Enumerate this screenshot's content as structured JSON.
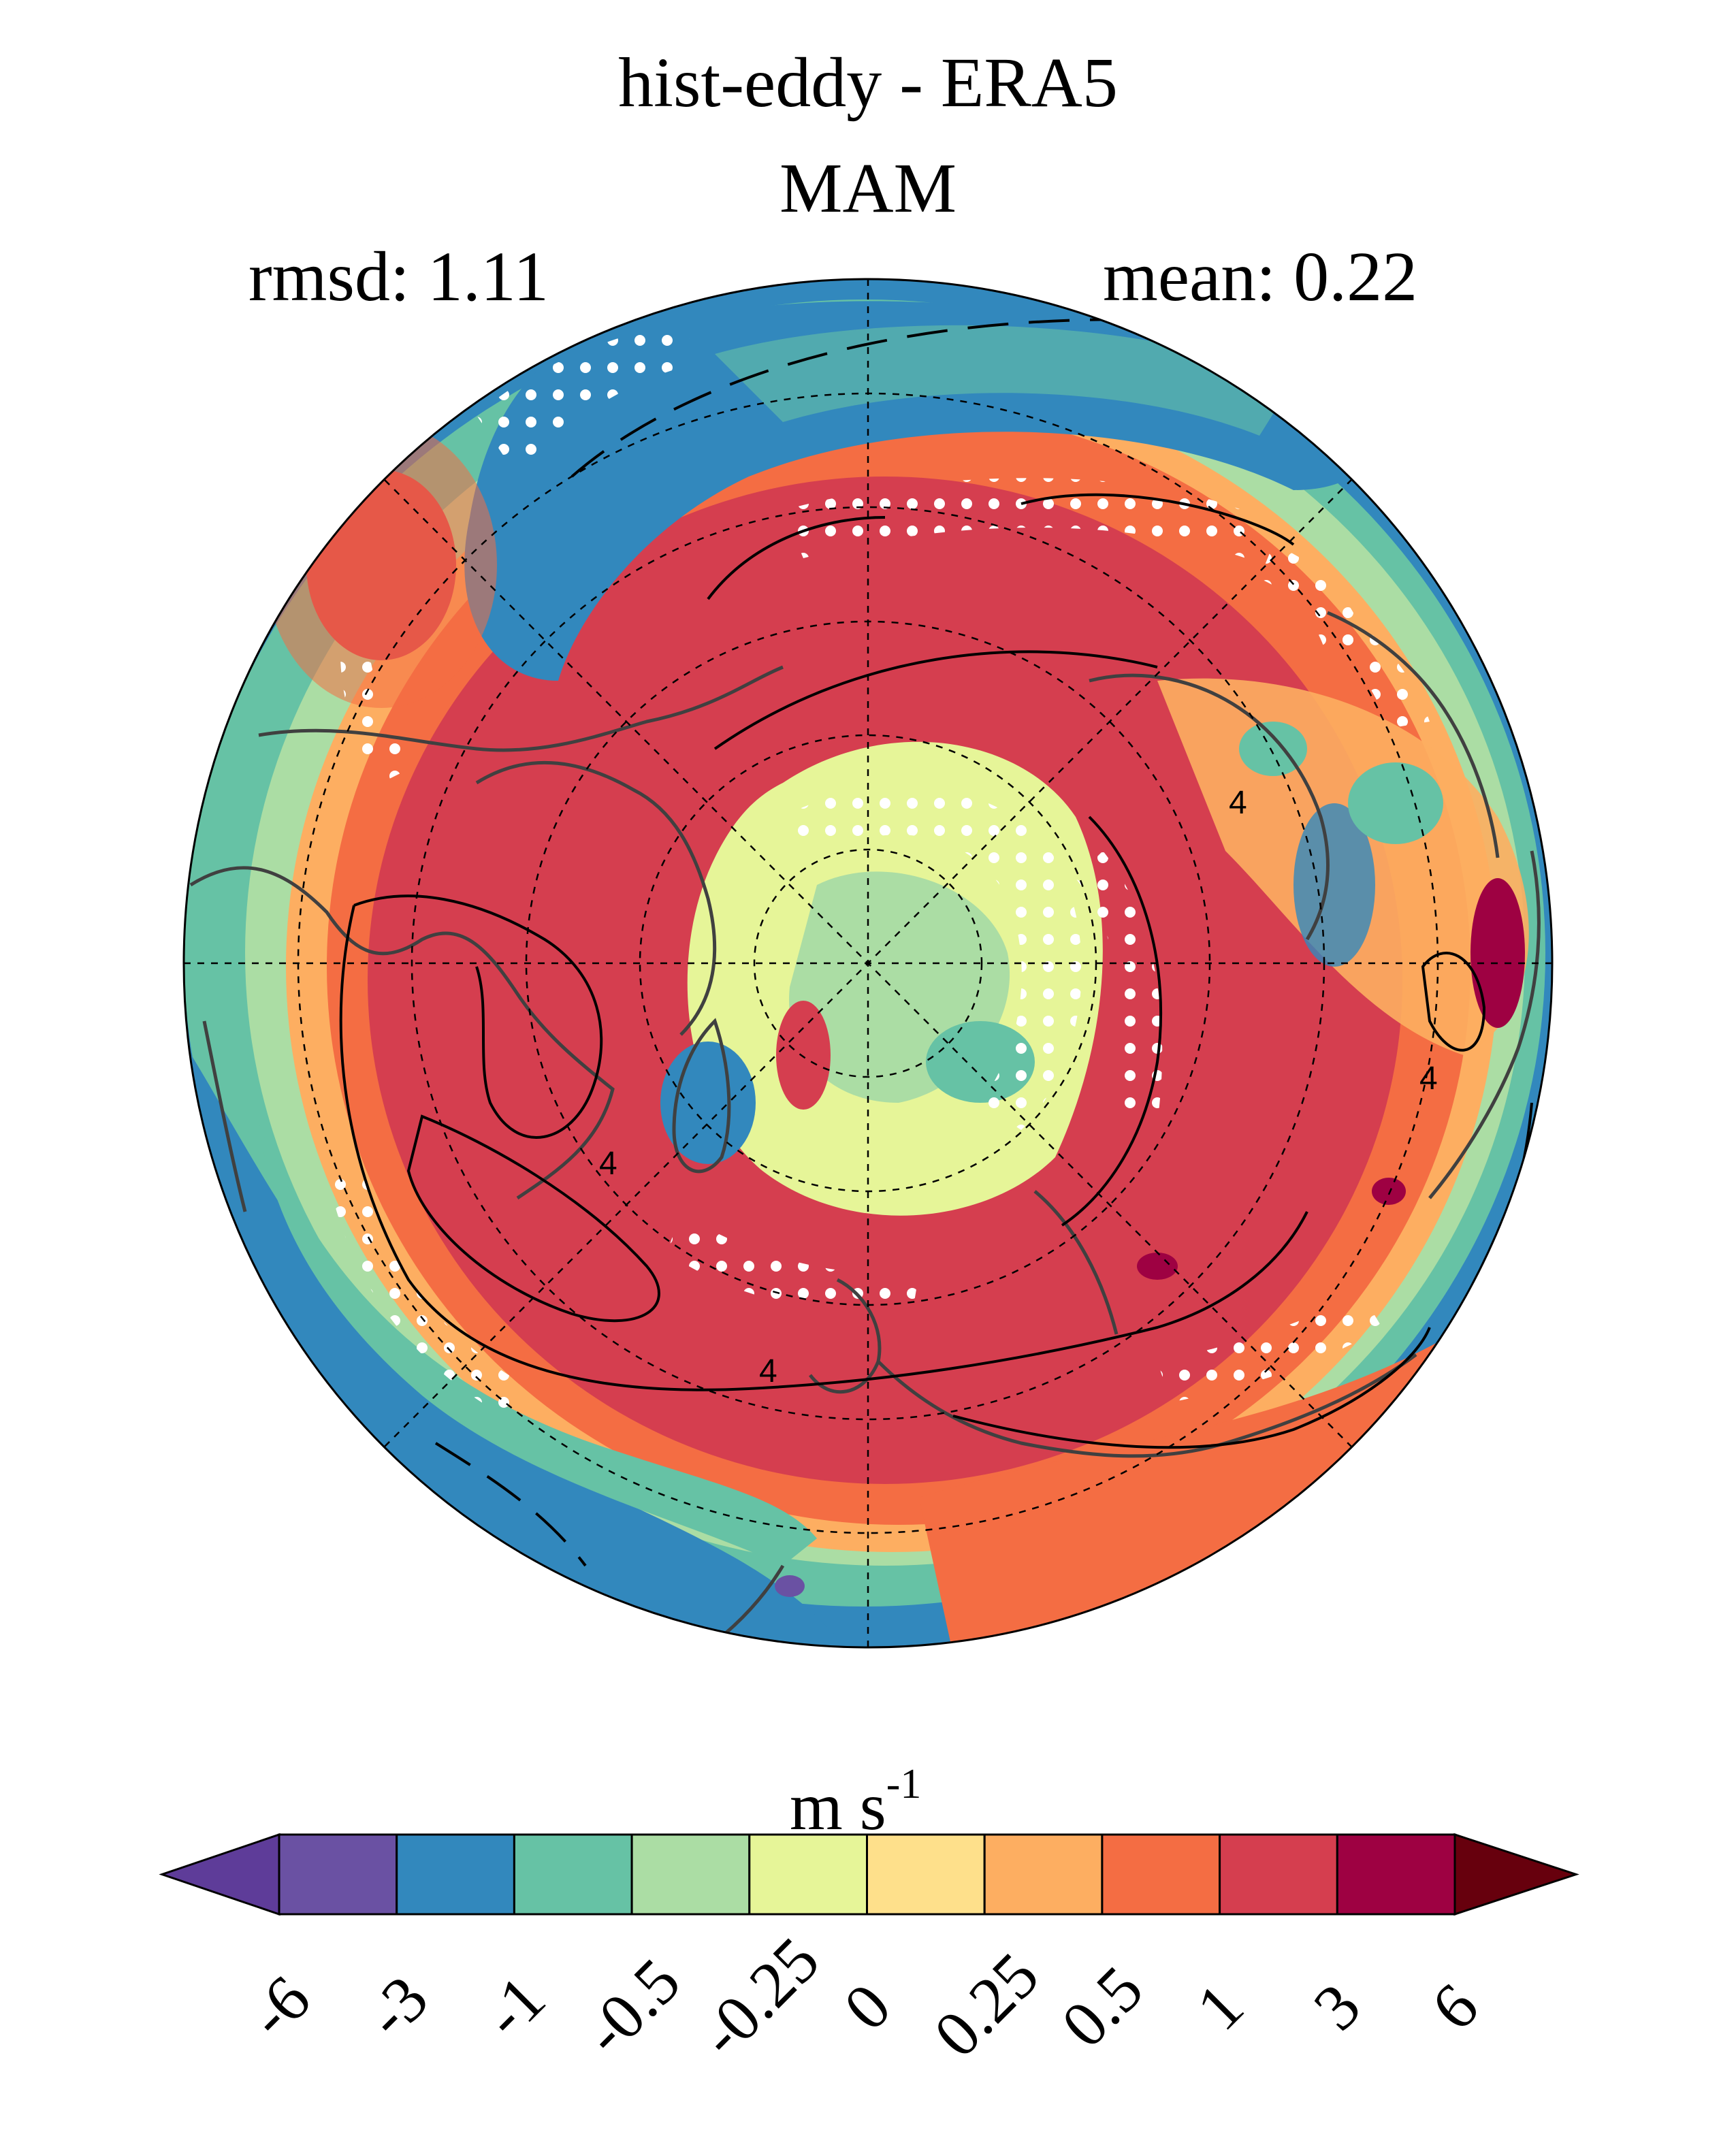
{
  "title": "hist-eddy - ERA5",
  "season": "MAM",
  "stats": {
    "rmsd_label": "rmsd: 1.11",
    "mean_label": "mean: 0.22"
  },
  "colorbar": {
    "unit_base": "m s",
    "unit_exp": "-1",
    "ticks": [
      "-6",
      "-3",
      "-1",
      "-0.5",
      "-0.25",
      "0",
      "0.25",
      "0.5",
      "1",
      "3",
      "6"
    ],
    "colors": [
      "#5e3c99",
      "#6a51a3",
      "#3288bd",
      "#66c2a5",
      "#abdda4",
      "#e6f598",
      "#fee08b",
      "#fdae61",
      "#f46d43",
      "#d53e4f",
      "#9e0142",
      "#67000d"
    ]
  },
  "contour_label": "4"
}
